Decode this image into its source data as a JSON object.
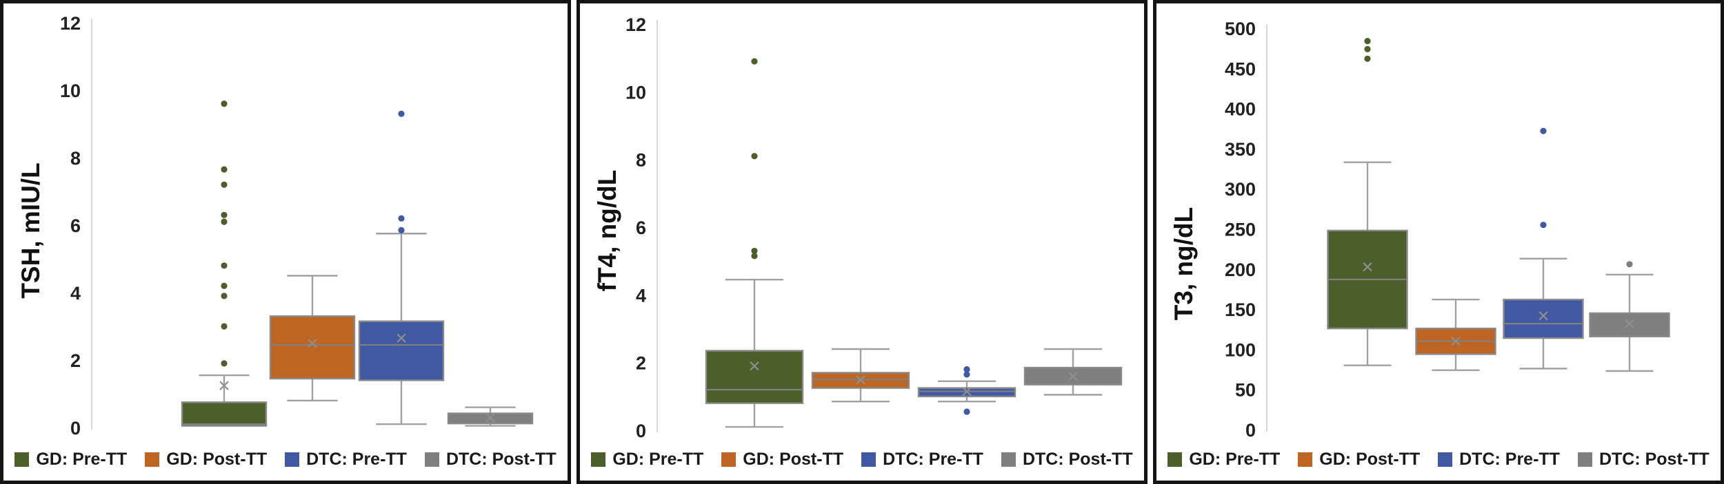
{
  "colors": {
    "green": "#4c5f2b",
    "orange": "#bf6524",
    "blue": "#4159a3",
    "gray": "#7f7f7f",
    "box_stroke": "#8a8a8a",
    "whisker": "#a0a0a0",
    "median": "#808080",
    "mean_marker": "#8f8f8f",
    "axis_line": "#d9d9d9",
    "panel_border": "#141414",
    "tick_text": "#212121"
  },
  "legend": {
    "items": [
      {
        "label": "GD: Pre-TT",
        "color": "green"
      },
      {
        "label": "GD: Post-TT",
        "color": "orange"
      },
      {
        "label": "DTC: Pre-TT",
        "color": "blue"
      },
      {
        "label": "DTC: Post-TT",
        "color": "gray"
      }
    ]
  },
  "chart_data": [
    {
      "type": "box",
      "id": "tsh",
      "title": "TSH, mIU/L",
      "ylabel": "TSH, mIU/L",
      "xlabel": "",
      "ylim": [
        0,
        12
      ],
      "yticks": [
        0,
        2,
        4,
        6,
        8,
        10,
        12
      ],
      "grid": false,
      "legend_position": "bottom",
      "categories": [
        "GD: Pre-TT",
        "GD: Post-TT",
        "DTC: Pre-TT",
        "DTC: Post-TT"
      ],
      "series": [
        {
          "name": "GD: Pre-TT",
          "color": "green",
          "whisker_low": 0.05,
          "q1": 0.05,
          "median": 0.1,
          "q3": 0.75,
          "whisker_high": 1.55,
          "mean": 1.25,
          "outliers": [
            1.9,
            3.0,
            3.9,
            4.2,
            4.8,
            6.1,
            6.3,
            7.2,
            7.65,
            9.6
          ]
        },
        {
          "name": "GD: Post-TT",
          "color": "orange",
          "whisker_low": 0.8,
          "q1": 1.45,
          "median": 2.45,
          "q3": 3.3,
          "whisker_high": 4.5,
          "mean": 2.5,
          "outliers": []
        },
        {
          "name": "DTC: Pre-TT",
          "color": "blue",
          "whisker_low": 0.1,
          "q1": 1.4,
          "median": 2.45,
          "q3": 3.15,
          "whisker_high": 5.75,
          "mean": 2.65,
          "outliers": [
            5.85,
            6.2,
            9.3
          ]
        },
        {
          "name": "DTC: Post-TT",
          "color": "gray",
          "whisker_low": 0.05,
          "q1": 0.12,
          "median": 0.25,
          "q3": 0.42,
          "whisker_high": 0.6,
          "mean": 0.3,
          "outliers": []
        }
      ]
    },
    {
      "type": "box",
      "id": "ft4",
      "title": "fT4, ng/dL",
      "ylabel": "fT4, ng/dL",
      "xlabel": "",
      "ylim": [
        0,
        12
      ],
      "yticks": [
        0,
        2,
        4,
        6,
        8,
        10,
        12
      ],
      "grid": false,
      "legend_position": "bottom",
      "categories": [
        "GD: Pre-TT",
        "GD: Post-TT",
        "DTC: Pre-TT",
        "DTC: Post-TT"
      ],
      "series": [
        {
          "name": "GD: Pre-TT",
          "color": "green",
          "whisker_low": 0.1,
          "q1": 0.8,
          "median": 1.2,
          "q3": 2.35,
          "whisker_high": 4.45,
          "mean": 1.9,
          "outliers": [
            5.15,
            5.3,
            8.1,
            10.9
          ]
        },
        {
          "name": "GD: Post-TT",
          "color": "orange",
          "whisker_low": 0.85,
          "q1": 1.25,
          "median": 1.5,
          "q3": 1.7,
          "whisker_high": 2.4,
          "mean": 1.5,
          "outliers": []
        },
        {
          "name": "DTC: Pre-TT",
          "color": "blue",
          "whisker_low": 0.85,
          "q1": 1.0,
          "median": 1.15,
          "q3": 1.25,
          "whisker_high": 1.45,
          "mean": 1.15,
          "outliers": [
            0.55,
            1.65,
            1.8
          ]
        },
        {
          "name": "DTC: Post-TT",
          "color": "gray",
          "whisker_low": 1.05,
          "q1": 1.35,
          "median": 1.55,
          "q3": 1.85,
          "whisker_high": 2.4,
          "mean": 1.6,
          "outliers": []
        }
      ]
    },
    {
      "type": "box",
      "id": "t3",
      "title": "T3, ng/dL",
      "ylabel": "T3, ng/dL",
      "xlabel": "",
      "ylim": [
        0,
        500
      ],
      "yticks": [
        0,
        50,
        100,
        150,
        200,
        250,
        300,
        350,
        400,
        450,
        500
      ],
      "grid": false,
      "legend_position": "bottom",
      "categories": [
        "GD: Pre-TT",
        "GD: Post-TT",
        "DTC: Pre-TT",
        "DTC: Post-TT"
      ],
      "series": [
        {
          "name": "GD: Pre-TT",
          "color": "green",
          "whisker_low": 80,
          "q1": 126,
          "median": 187,
          "q3": 248,
          "whisker_high": 333,
          "mean": 203,
          "outliers": [
            462,
            474,
            484
          ]
        },
        {
          "name": "GD: Post-TT",
          "color": "orange",
          "whisker_low": 74,
          "q1": 94,
          "median": 110,
          "q3": 126,
          "whisker_high": 162,
          "mean": 110,
          "outliers": []
        },
        {
          "name": "DTC: Pre-TT",
          "color": "blue",
          "whisker_low": 76,
          "q1": 114,
          "median": 132,
          "q3": 162,
          "whisker_high": 213,
          "mean": 142,
          "outliers": [
            255,
            372
          ]
        },
        {
          "name": "DTC: Post-TT",
          "color": "gray",
          "whisker_low": 73,
          "q1": 116,
          "median": 132,
          "q3": 145,
          "whisker_high": 193,
          "mean": 132,
          "outliers": [
            206
          ]
        }
      ]
    }
  ]
}
